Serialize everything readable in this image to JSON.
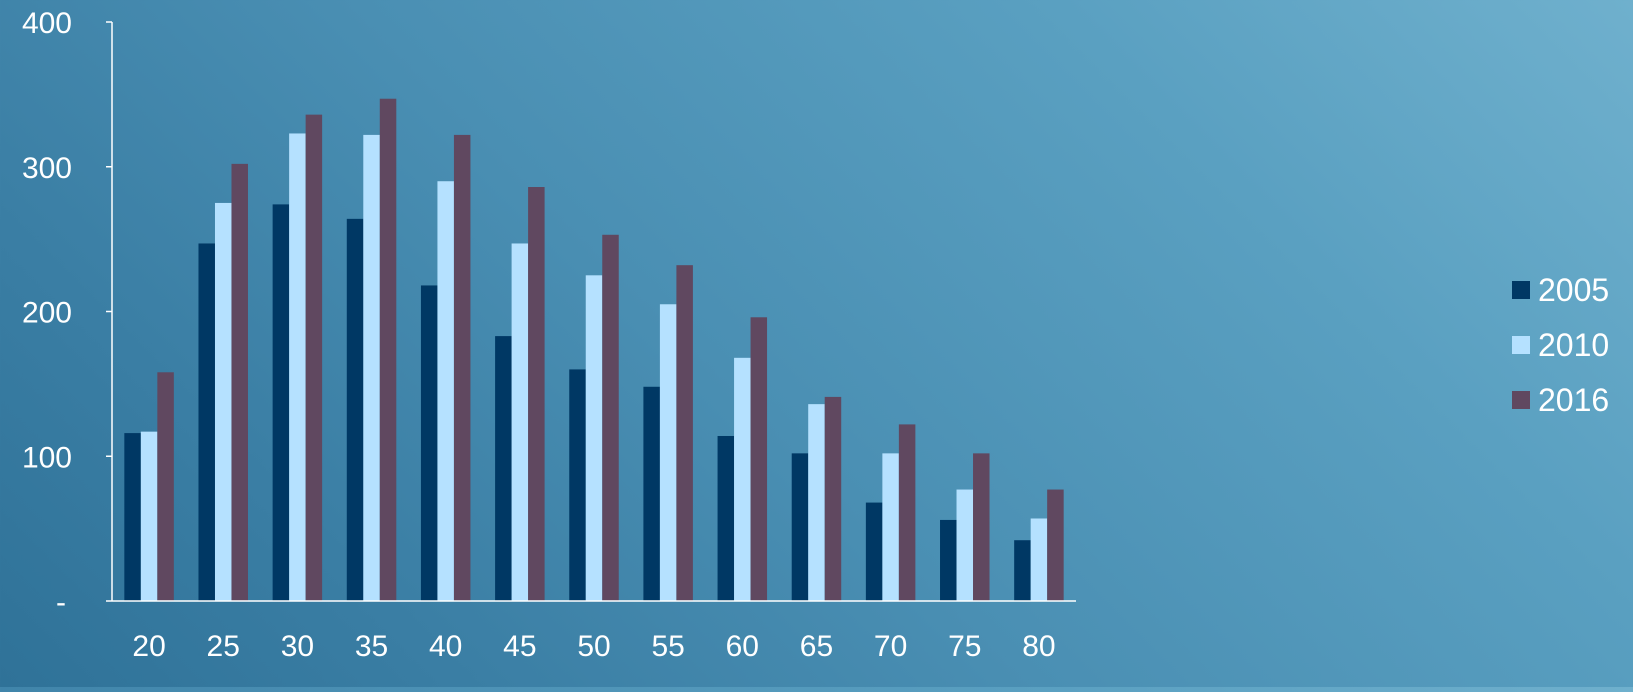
{
  "colors": {
    "axis": "#ffffff",
    "text": "#ffffff"
  },
  "chart_data": {
    "type": "bar",
    "categories": [
      "20",
      "25",
      "30",
      "35",
      "40",
      "45",
      "50",
      "55",
      "60",
      "65",
      "70",
      "75",
      "80"
    ],
    "series": [
      {
        "name": "2005",
        "color": "#003864",
        "values": [
          116,
          247,
          274,
          264,
          218,
          183,
          160,
          148,
          114,
          102,
          68,
          56,
          42
        ]
      },
      {
        "name": "2010",
        "color": "#b5e1ff",
        "values": [
          117,
          275,
          323,
          322,
          290,
          247,
          225,
          205,
          168,
          136,
          102,
          77,
          57
        ]
      },
      {
        "name": "2016",
        "color": "#604860",
        "values": [
          158,
          302,
          336,
          347,
          322,
          286,
          253,
          232,
          196,
          141,
          122,
          102,
          77
        ]
      }
    ],
    "y_ticks": [
      {
        "value": 0,
        "label": "-"
      },
      {
        "value": 100,
        "label": "100"
      },
      {
        "value": 200,
        "label": "200"
      },
      {
        "value": 300,
        "label": "300"
      },
      {
        "value": 400,
        "label": "400"
      }
    ],
    "ylim": [
      0,
      400
    ],
    "title": "",
    "xlabel": "",
    "ylabel": "",
    "grid": false,
    "legend_position": "right"
  }
}
